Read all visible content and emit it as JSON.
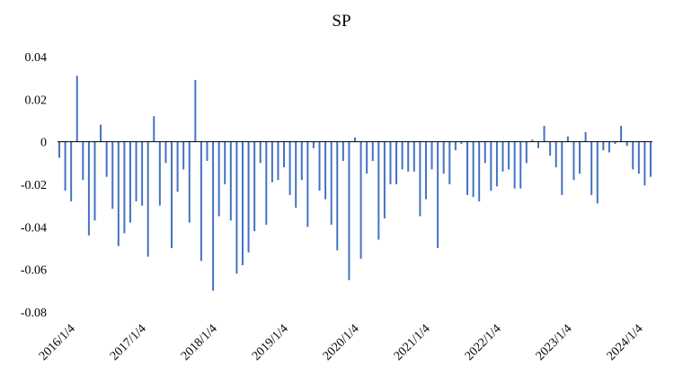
{
  "chart_data": {
    "type": "bar",
    "title": "SP",
    "xlabel": "",
    "ylabel": "",
    "ylim": [
      -0.08,
      0.04
    ],
    "yticks": [
      0.04,
      0.02,
      0,
      -0.02,
      -0.04,
      -0.06,
      -0.08
    ],
    "ytick_labels": [
      "0.04",
      "0.02",
      "0",
      "-0.02",
      "-0.04",
      "-0.06",
      "-0.08"
    ],
    "xtick_labels": [
      "2016/1/4",
      "2017/1/4",
      "2018/1/4",
      "2019/1/4",
      "2020/1/4",
      "2021/1/4",
      "2022/1/4",
      "2023/1/4",
      "2024/1/4"
    ],
    "xtick_positions": [
      0,
      12,
      24,
      36,
      48,
      60,
      72,
      84,
      96
    ],
    "grid": false,
    "legend": "none",
    "colors": {
      "bar": "#4472C4",
      "axis": "#000000"
    },
    "values": [
      -0.0075,
      -0.023,
      -0.028,
      0.031,
      -0.018,
      -0.044,
      -0.037,
      0.008,
      -0.0165,
      -0.0315,
      -0.049,
      -0.043,
      -0.038,
      -0.028,
      -0.03,
      -0.054,
      0.012,
      -0.03,
      -0.01,
      -0.05,
      -0.0235,
      -0.013,
      -0.038,
      0.029,
      -0.056,
      -0.009,
      -0.07,
      -0.035,
      -0.02,
      -0.037,
      -0.062,
      -0.058,
      -0.052,
      -0.042,
      -0.01,
      -0.039,
      -0.019,
      -0.018,
      -0.012,
      -0.025,
      -0.031,
      -0.018,
      -0.04,
      -0.003,
      -0.023,
      -0.027,
      -0.039,
      -0.051,
      -0.009,
      -0.065,
      0.002,
      -0.055,
      -0.015,
      -0.009,
      -0.046,
      -0.036,
      -0.02,
      -0.02,
      -0.013,
      -0.014,
      -0.014,
      -0.035,
      -0.027,
      -0.013,
      -0.05,
      -0.015,
      -0.02,
      -0.004,
      -0.001,
      -0.025,
      -0.026,
      -0.028,
      -0.01,
      -0.023,
      -0.021,
      -0.014,
      -0.013,
      -0.022,
      -0.022,
      -0.01,
      0.001,
      -0.003,
      0.0075,
      -0.0065,
      -0.012,
      -0.025,
      0.0025,
      -0.018,
      -0.015,
      0.0045,
      -0.025,
      -0.029,
      -0.004,
      -0.005,
      -0.001,
      0.0075,
      -0.002,
      -0.013,
      -0.015,
      -0.0205,
      -0.0165
    ]
  }
}
